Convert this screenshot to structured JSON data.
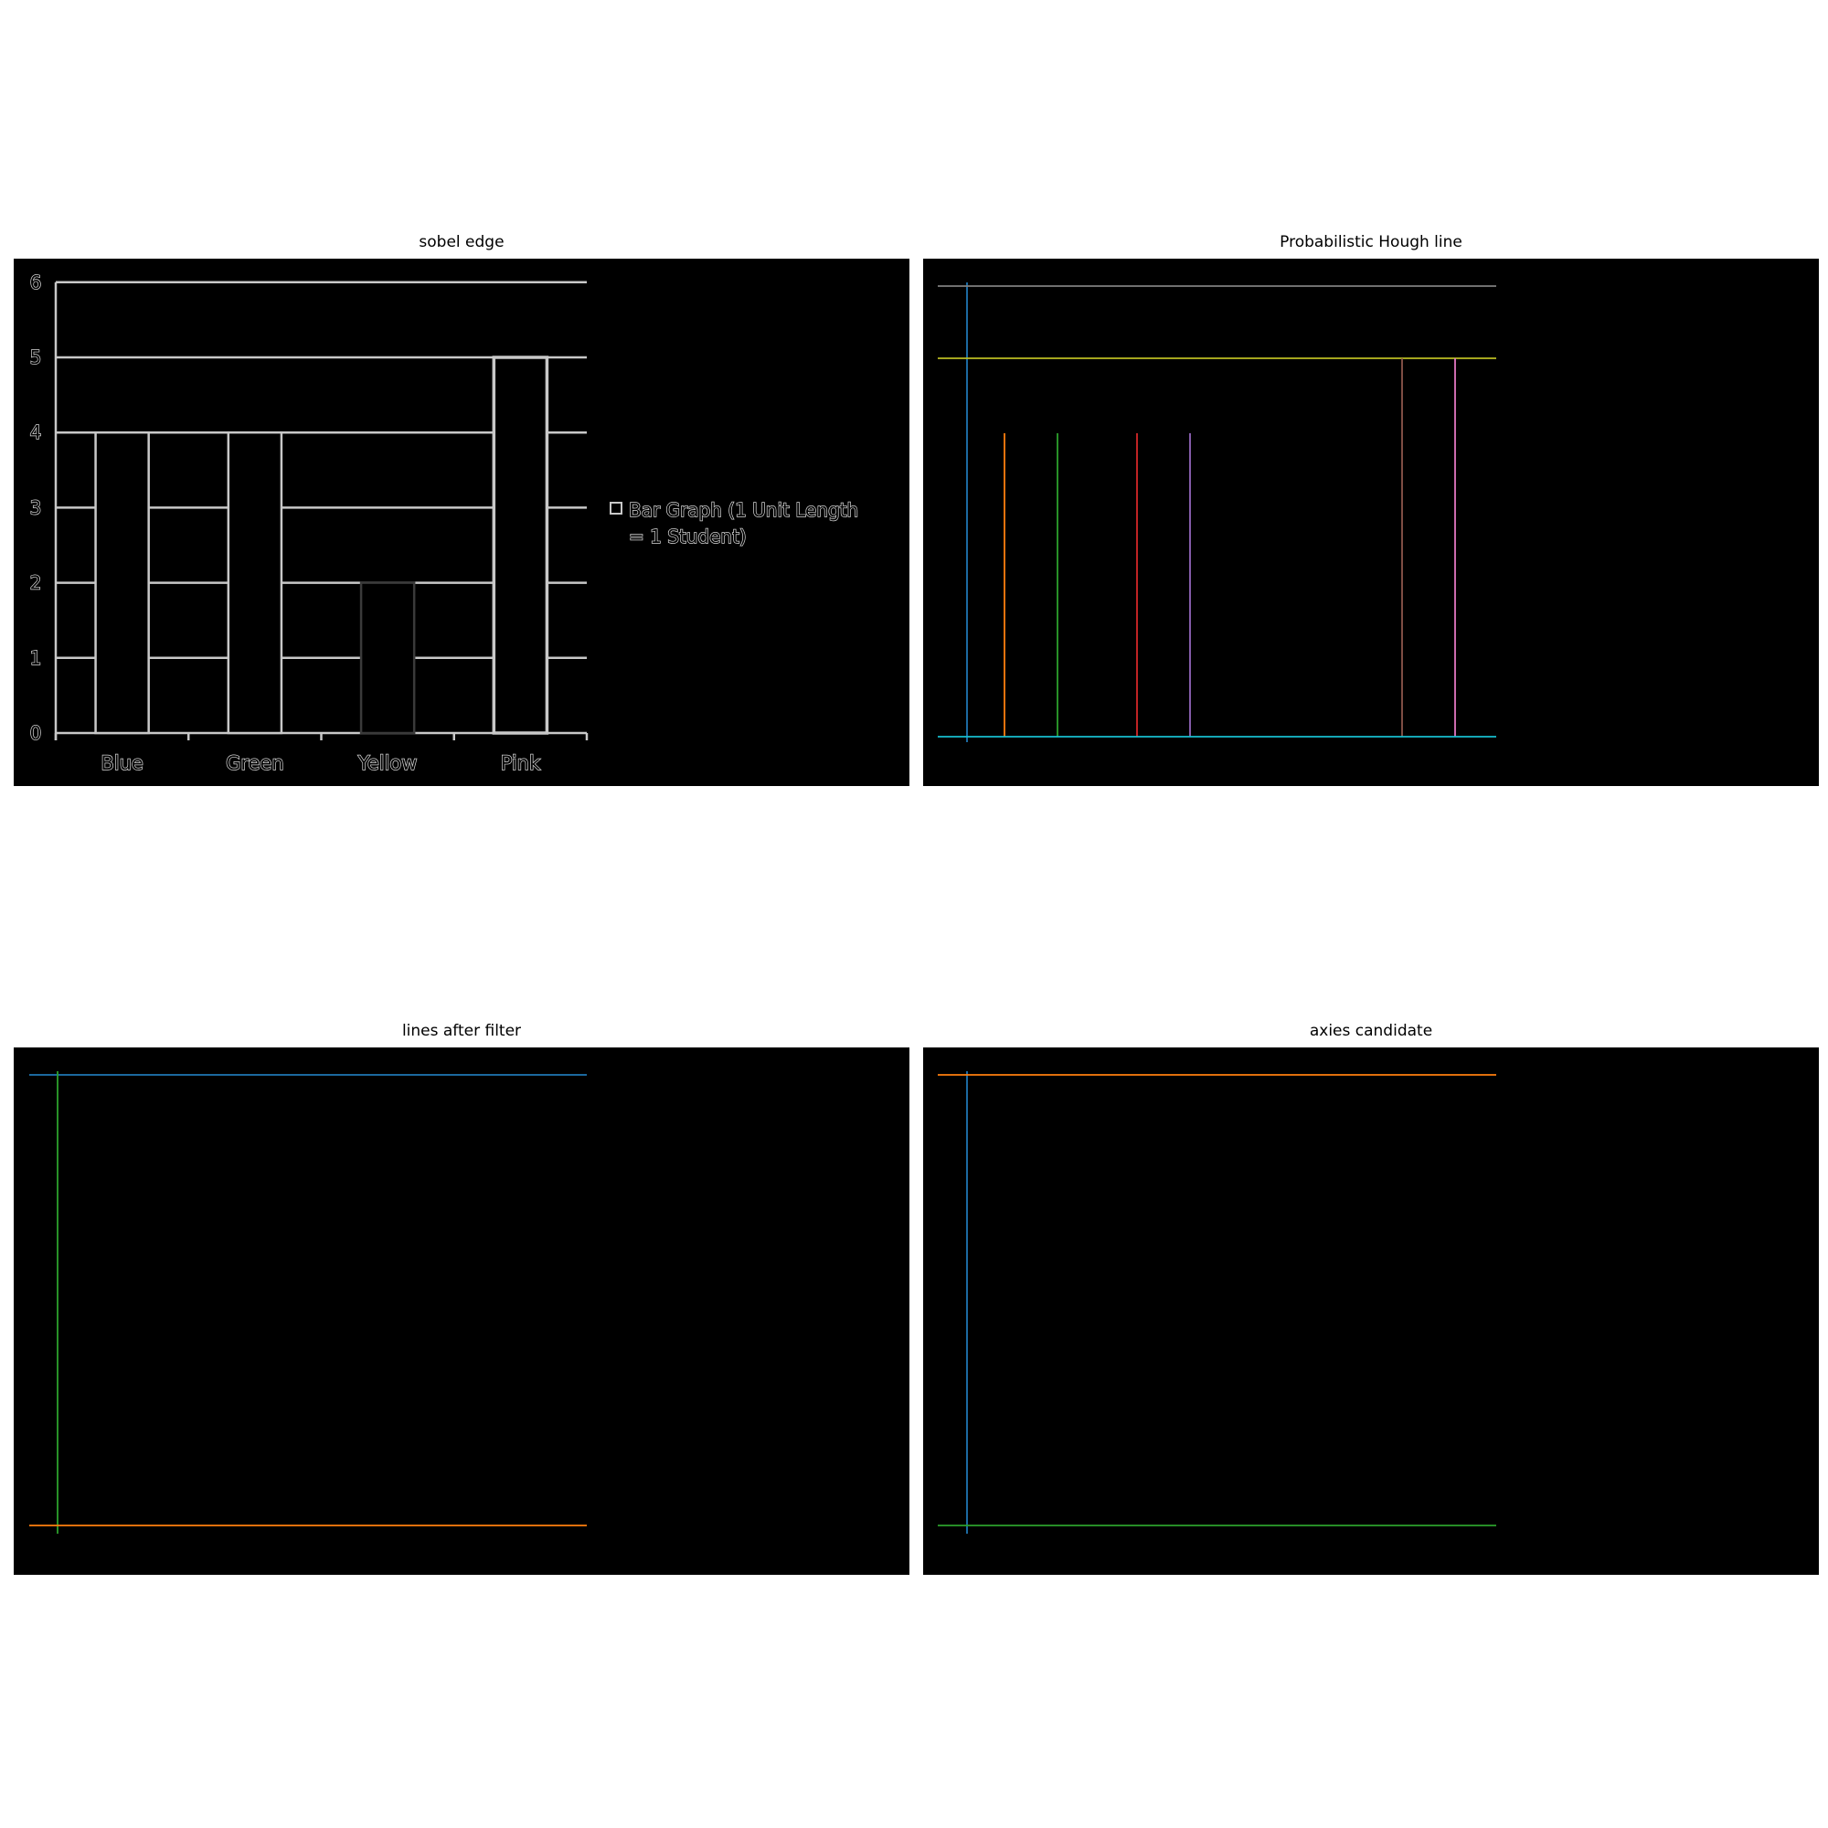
{
  "panels": [
    {
      "id": "sobel",
      "title": "sobel edge"
    },
    {
      "id": "hough",
      "title": "Probabilistic Hough line"
    },
    {
      "id": "filter",
      "title": "lines after filter"
    },
    {
      "id": "axes",
      "title": "axies candidate"
    }
  ],
  "chart_data": [
    {
      "panel": "sobel edge",
      "type": "bar",
      "categories": [
        "Blue",
        "Green",
        "Yellow",
        "Pink"
      ],
      "values": [
        4,
        4,
        2,
        5
      ],
      "y_ticks": [
        "0",
        "1",
        "2",
        "3",
        "4",
        "5",
        "6"
      ],
      "ylim": [
        0,
        6
      ],
      "grid": true,
      "legend": {
        "placement": "right",
        "label": "Bar Graph   (1 Unit Length = 1 Student)"
      },
      "rendering": "edge-detected (light outlines on black)"
    },
    {
      "panel": "Probabilistic Hough line",
      "type": "line-segments",
      "segments": [
        {
          "orientation": "vertical",
          "color": "#1f77b4"
        },
        {
          "orientation": "horizontal",
          "color": "#7f7f7f"
        },
        {
          "orientation": "horizontal",
          "color": "#bcbd22"
        },
        {
          "orientation": "vertical",
          "color": "#ff7f0e"
        },
        {
          "orientation": "vertical",
          "color": "#2ca02c"
        },
        {
          "orientation": "vertical",
          "color": "#d62728"
        },
        {
          "orientation": "vertical",
          "color": "#9467bd"
        },
        {
          "orientation": "vertical",
          "color": "#8c564b"
        },
        {
          "orientation": "vertical",
          "color": "#e377c2"
        },
        {
          "orientation": "horizontal",
          "color": "#17becf"
        }
      ]
    },
    {
      "panel": "lines after filter",
      "type": "line-segments",
      "segments": [
        {
          "orientation": "horizontal",
          "color": "#1f77b4"
        },
        {
          "orientation": "vertical",
          "color": "#2ca02c"
        },
        {
          "orientation": "horizontal",
          "color": "#ff7f0e"
        }
      ]
    },
    {
      "panel": "axies candidate",
      "type": "line-segments",
      "segments": [
        {
          "orientation": "vertical",
          "color": "#1f77b4"
        },
        {
          "orientation": "horizontal",
          "color": "#ff7f0e"
        },
        {
          "orientation": "horizontal",
          "color": "#2ca02c"
        }
      ]
    }
  ]
}
